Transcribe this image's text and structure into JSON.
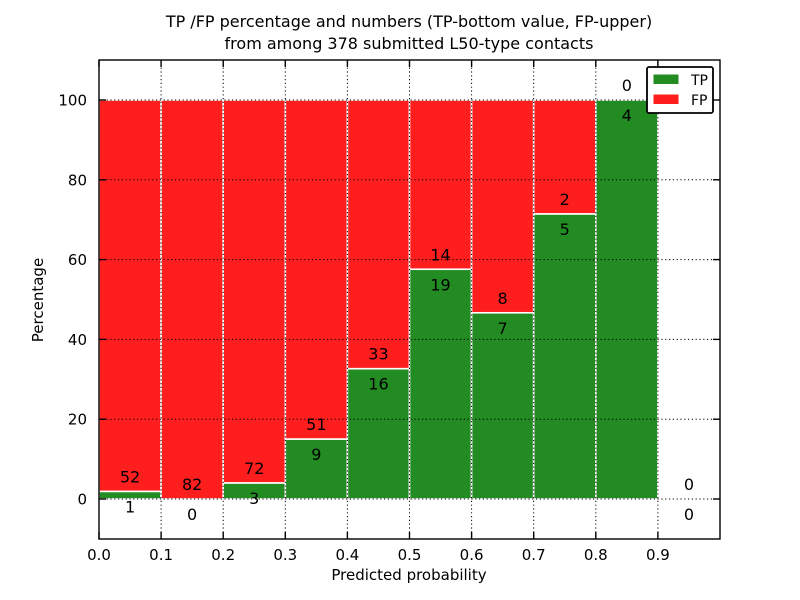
{
  "title": {
    "line1": "TP /FP percentage and numbers (TP-bottom value, FP-upper)",
    "line2": "from among 378 submitted L50-type contacts"
  },
  "axes": {
    "xlabel": "Predicted probability",
    "ylabel": "Percentage",
    "xtick_labels": [
      "0.0",
      "0.1",
      "0.2",
      "0.3",
      "0.4",
      "0.5",
      "0.6",
      "0.7",
      "0.8",
      "0.9"
    ],
    "xtick_values": [
      0.0,
      0.1,
      0.2,
      0.3,
      0.4,
      0.5,
      0.6,
      0.7,
      0.8,
      0.9
    ],
    "ytick_labels": [
      "0",
      "20",
      "40",
      "60",
      "80",
      "100"
    ],
    "ytick_values": [
      0,
      20,
      40,
      60,
      80,
      100
    ],
    "xlim": [
      0.0,
      1.0
    ],
    "ylim": [
      -10,
      110
    ]
  },
  "legend": {
    "items": [
      {
        "label": "TP",
        "color": "#228B22"
      },
      {
        "label": "FP",
        "color": "#FF1E1E"
      }
    ]
  },
  "colors": {
    "tp": "#228B22",
    "fp": "#FF1E1E",
    "bar_edge": "#FFFFFF",
    "grid": "#000000",
    "spine": "#000000",
    "background": "#FFFFFF"
  },
  "chart_data": {
    "type": "bar",
    "stacked": true,
    "normalized_to_percent": true,
    "title": "TP /FP percentage and numbers (TP-bottom value, FP-upper) from among 378 submitted L50-type contacts",
    "xlabel": "Predicted probability",
    "ylabel": "Percentage",
    "xlim": [
      0.0,
      1.0
    ],
    "ylim": [
      -10,
      110
    ],
    "grid": "dotted",
    "legend_position": "upper right",
    "total_contacts": 378,
    "bin_edges": [
      0.0,
      0.1,
      0.2,
      0.3,
      0.4,
      0.5,
      0.6,
      0.7,
      0.8,
      0.9,
      1.0
    ],
    "categories": [
      "0.0-0.1",
      "0.1-0.2",
      "0.2-0.3",
      "0.3-0.4",
      "0.4-0.5",
      "0.5-0.6",
      "0.6-0.7",
      "0.7-0.8",
      "0.8-0.9",
      "0.9-1.0"
    ],
    "series": [
      {
        "name": "TP",
        "color": "#228B22",
        "counts": [
          1,
          0,
          3,
          9,
          16,
          19,
          7,
          5,
          4,
          0
        ],
        "percent": [
          1.89,
          0,
          4,
          15,
          32.65,
          57.58,
          46.67,
          71.43,
          100,
          0
        ]
      },
      {
        "name": "FP",
        "color": "#FF1E1E",
        "counts": [
          52,
          82,
          72,
          51,
          33,
          14,
          8,
          2,
          0,
          0
        ],
        "percent": [
          98.11,
          100,
          96,
          85,
          67.35,
          42.42,
          53.33,
          28.57,
          0,
          0
        ]
      }
    ]
  }
}
